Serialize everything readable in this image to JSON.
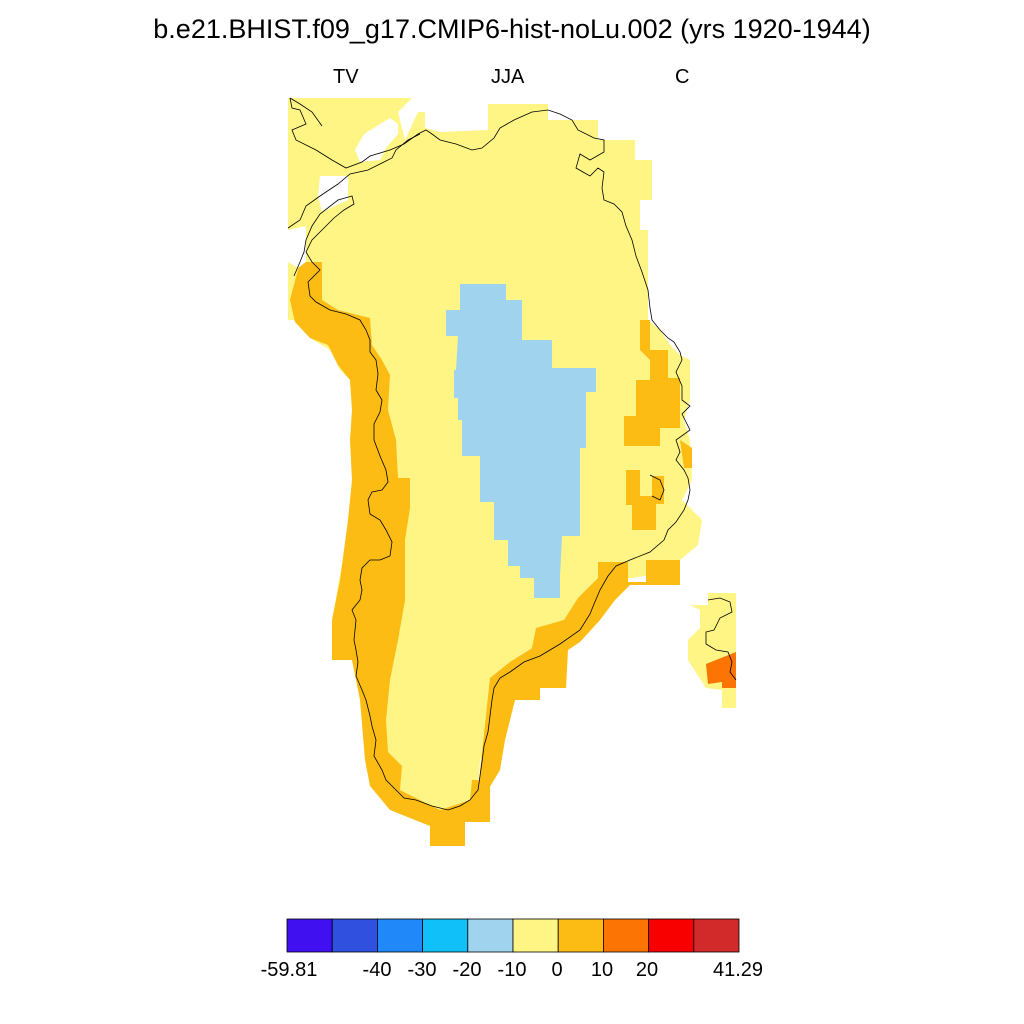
{
  "title": "b.e21.BHIST.f09_g17.CMIP6-hist-noLu.002 (yrs 1920-1944)",
  "subtitle_left": "TV",
  "subtitle_center": "JJA",
  "subtitle_right": "C",
  "region": "Greenland",
  "legend": {
    "min_label": "-59.81",
    "max_label": "41.29",
    "tick_labels": [
      "-59.81",
      "-40",
      "-30",
      "-20",
      "-10",
      "0",
      "10",
      "20",
      "41.29"
    ],
    "bins": [
      {
        "range": "-59.81 to -40",
        "color": "#4010f0"
      },
      {
        "range": "-40 to -30",
        "color": "#3050e0"
      },
      {
        "range": "-30 to -20",
        "color": "#2088f8"
      },
      {
        "range": "-20 to -10",
        "color": "#10c0f8"
      },
      {
        "range": "-10 to 0",
        "color": "#a0d4ee"
      },
      {
        "range": "0 to 10",
        "color": "#fef584"
      },
      {
        "range": "10 to 20",
        "color": "#fcbc14"
      },
      {
        "range": "20 to ...",
        "color": "#fc7404"
      },
      {
        "range": "...",
        "color": "#f80000"
      },
      {
        "range": "... to 41.29",
        "color": "#d22a2a"
      }
    ]
  },
  "map_fill": {
    "interior_value_range": "-10 to 0",
    "interior_color": "#a0d4ee",
    "main_value_range": "0 to 10",
    "main_color": "#fef584",
    "coastal_value_range": "10 to 20",
    "coastal_color": "#fcbc14",
    "warm_spot_value_range": "20 to ...",
    "warm_spot_color": "#fc7404"
  }
}
